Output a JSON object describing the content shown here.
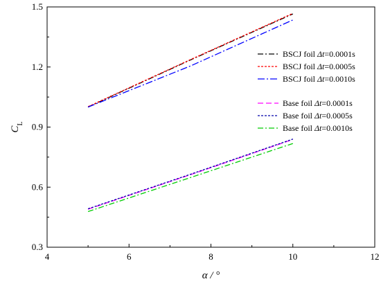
{
  "chart_data": {
    "type": "line",
    "xlabel": "α / °",
    "ylabel_main": "C",
    "ylabel_sub": "L",
    "xlim": [
      4,
      12
    ],
    "ylim": [
      0.3,
      1.5
    ],
    "xticks": [
      4,
      6,
      8,
      10,
      12
    ],
    "yticks": [
      0.3,
      0.6,
      0.9,
      1.2,
      1.5
    ],
    "xtick_labels": [
      "4",
      "6",
      "8",
      "10",
      "12"
    ],
    "ytick_labels": [
      "0.3",
      "0.6",
      "0.9",
      "1.2",
      "1.5"
    ],
    "grid": false,
    "legend_position": "right",
    "series": [
      {
        "name": "BSCJ foil Δt=0.0001s",
        "prefix": "BSCJ foil ",
        "var": "Δt",
        "suffix": "=0.0001s",
        "color": "#000000",
        "dash": "8,3,2,3",
        "x": [
          5,
          7.5,
          10
        ],
        "y": [
          1.0,
          1.235,
          1.465
        ]
      },
      {
        "name": "BSCJ foil Δt=0.0005s",
        "prefix": "BSCJ foil ",
        "var": "Δt",
        "suffix": "=0.0005s",
        "color": "#ff0000",
        "dash": "3,2",
        "x": [
          5,
          7.5,
          10
        ],
        "y": [
          1.002,
          1.237,
          1.468
        ]
      },
      {
        "name": "BSCJ foil Δt=0.0010s",
        "prefix": "BSCJ foil ",
        "var": "Δt",
        "suffix": "=0.0010s",
        "color": "#0000ff",
        "dash": "10,3,2,3",
        "x": [
          5,
          7.5,
          10
        ],
        "y": [
          1.0,
          1.205,
          1.435
        ]
      },
      {
        "name": "Base foil Δt=0.0001s",
        "prefix": "Base foil ",
        "var": "Δt",
        "suffix": "=0.0001s",
        "color": "#ff00ff",
        "dash": "8,4",
        "x": [
          5,
          7.5,
          10
        ],
        "y": [
          0.49,
          0.662,
          0.838
        ]
      },
      {
        "name": "Base foil Δt=0.0005s",
        "prefix": "Base foil ",
        "var": "Δt",
        "suffix": "=0.0005s",
        "color": "#0000aa",
        "dash": "3,2",
        "x": [
          5,
          7.5,
          10
        ],
        "y": [
          0.492,
          0.664,
          0.84
        ]
      },
      {
        "name": "Base foil Δt=0.0010s",
        "prefix": "Base foil ",
        "var": "Δt",
        "suffix": "=0.0010s",
        "color": "#00cc00",
        "dash": "8,3,2,3",
        "x": [
          5,
          7.5,
          10
        ],
        "y": [
          0.478,
          0.648,
          0.818
        ]
      }
    ]
  }
}
